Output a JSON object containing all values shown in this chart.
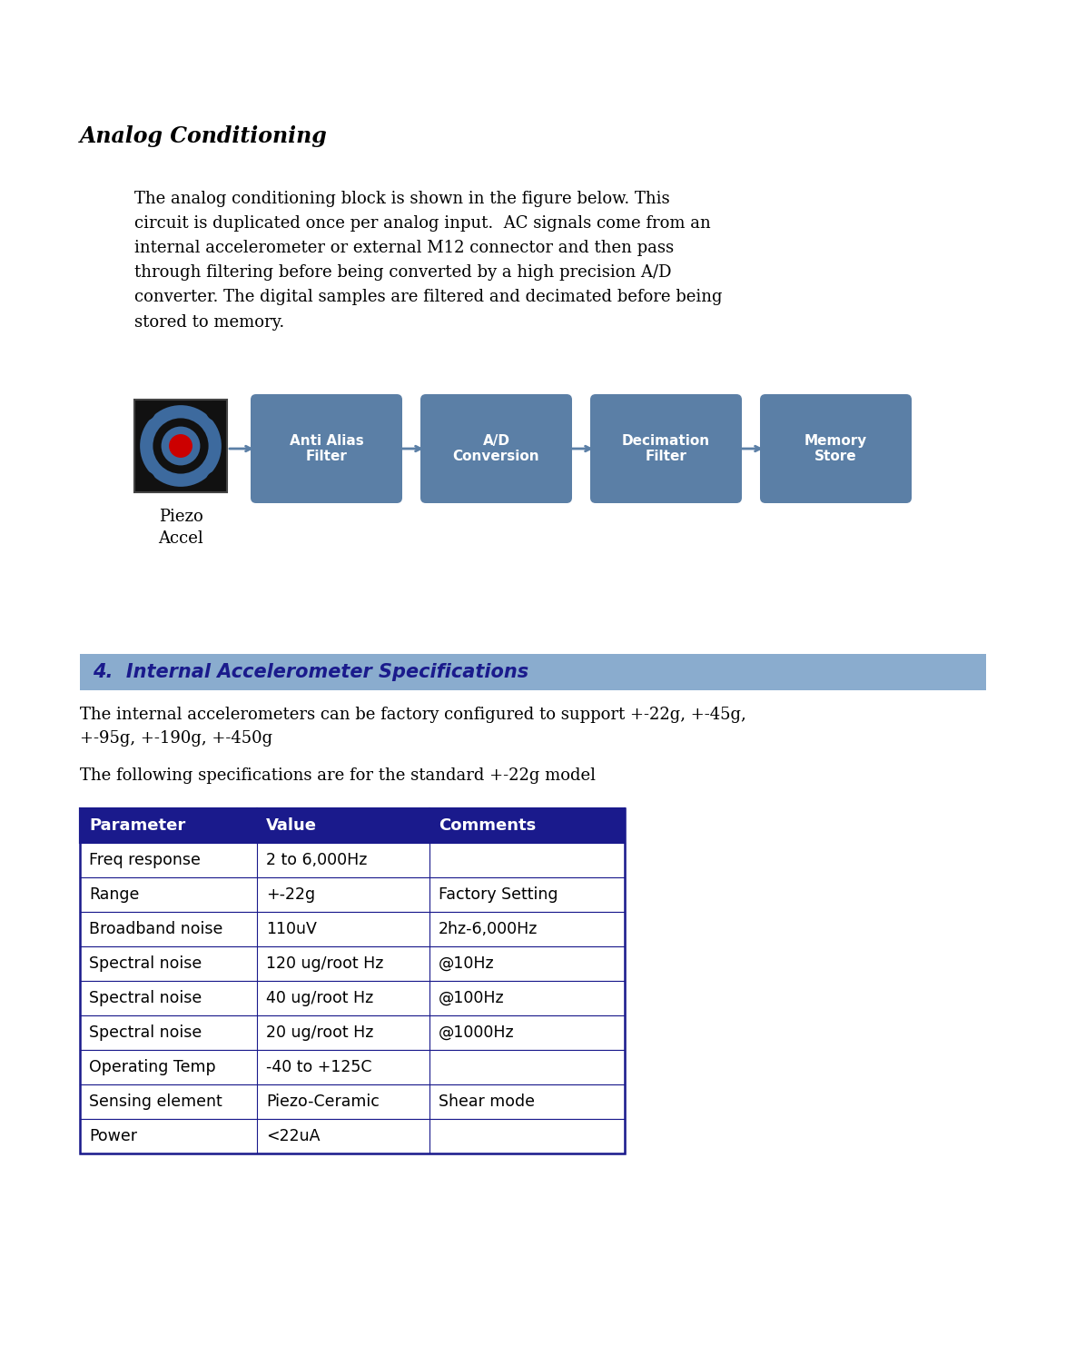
{
  "title": "Analog Conditioning",
  "body_text": "The analog conditioning block is shown in the figure below. This\ncircuit is duplicated once per analog input.  AC signals come from an\ninternal accelerometer or external M12 connector and then pass\nthrough filtering before being converted by a high precision A/D\nconverter. The digital samples are filtered and decimated before being\nstored to memory.",
  "diagram_blocks": [
    "Anti Alias\nFilter",
    "A/D\nConversion",
    "Decimation\nFilter",
    "Memory\nStore"
  ],
  "diagram_block_color": "#5b7fa6",
  "diagram_block_text_color": "#ffffff",
  "piezo_label": "Piezo\nAccel",
  "section_title": "4.  Internal Accelerometer Specifications",
  "section_title_bg": "#8aacce",
  "section_title_color": "#1a1a8c",
  "intro_text1": "The internal accelerometers can be factory configured to support +-22g, +-45g,\n+-95g, +-190g, +-450g",
  "intro_text2": "The following specifications are for the standard +-22g model",
  "table_header": [
    "Parameter",
    "Value",
    "Comments"
  ],
  "table_header_bg": "#1a1a8c",
  "table_header_color": "#ffffff",
  "table_rows": [
    [
      "Freq response",
      "2 to 6,000Hz",
      ""
    ],
    [
      "Range",
      "+-22g",
      "Factory Setting"
    ],
    [
      "Broadband noise",
      "110uV",
      "2hz-6,000Hz"
    ],
    [
      "Spectral noise",
      "120 ug/root Hz",
      "@10Hz"
    ],
    [
      "Spectral noise",
      "40 ug/root Hz",
      "@100Hz"
    ],
    [
      "Spectral noise",
      "20 ug/root Hz",
      "@1000Hz"
    ],
    [
      "Operating Temp",
      "-40 to +125C",
      ""
    ],
    [
      "Sensing element",
      "Piezo-Ceramic",
      "Shear mode"
    ],
    [
      "Power",
      "<22uA",
      ""
    ]
  ],
  "table_border_color": "#1a1a8c",
  "background_color": "#ffffff"
}
